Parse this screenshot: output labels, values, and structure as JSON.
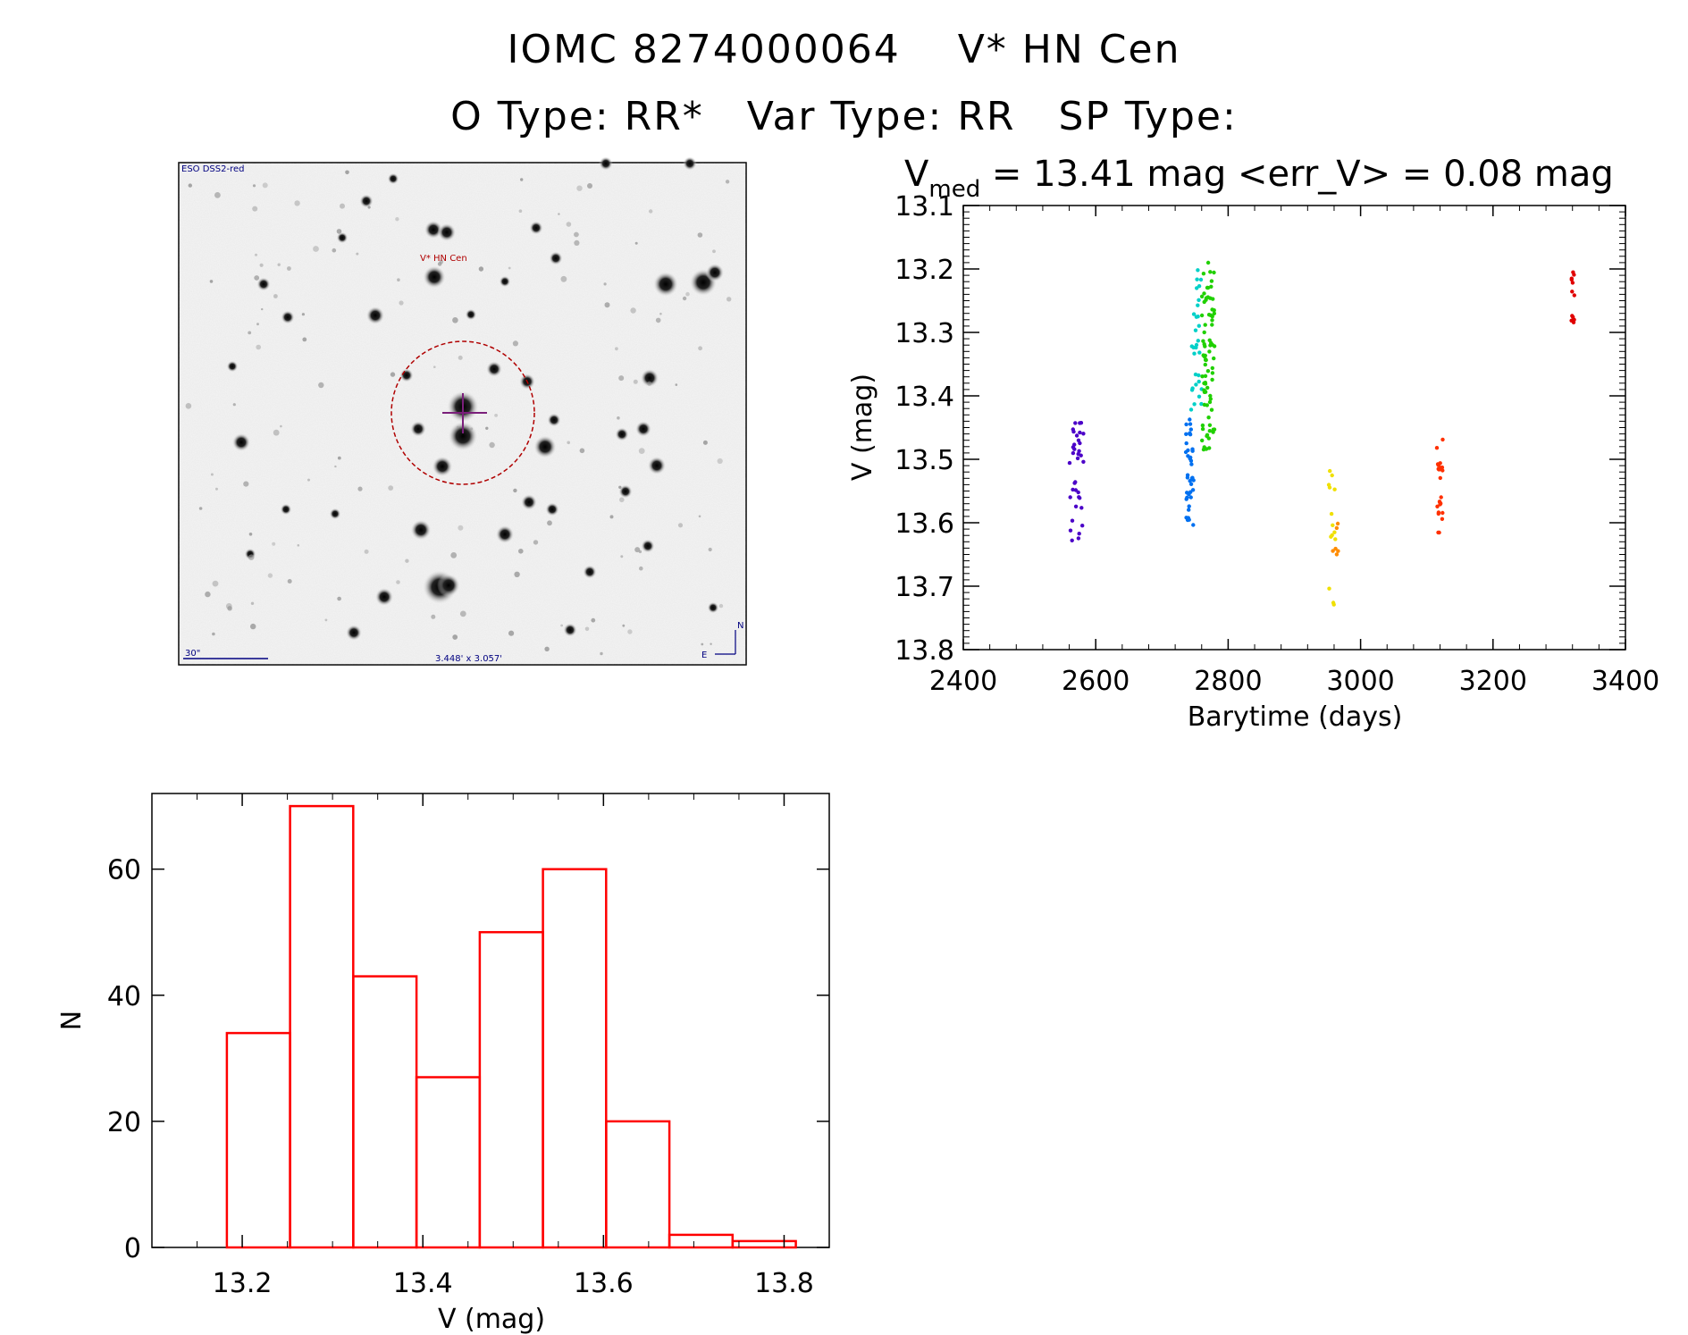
{
  "header": {
    "title_line1": "IOMC 8274000064    V* HN Cen",
    "title_line2": "O Type: RR*   Var Type: RR   SP Type:"
  },
  "finder_image": {
    "label_top_left": "ESO DSS2-red",
    "target_label": "V* HN Cen",
    "scale_label": "30\"",
    "size_label": "3.448' x 3.057'",
    "compass_n": "N",
    "compass_e": "E",
    "colors": {
      "circle": "#b00000",
      "crosshair": "#7a1f7a",
      "annotation": "#000080"
    }
  },
  "stats": {
    "v_symbol": "V",
    "v_subscript": "med",
    "v_text": " = 13.41 mag <err_V> = 0.08 mag"
  },
  "chart_data": [
    {
      "type": "scatter",
      "xlabel": "Barytime (days)",
      "ylabel": "V (mag)",
      "xlim": [
        2400,
        3400
      ],
      "ylim": [
        13.8,
        13.1
      ],
      "y_inverted": true,
      "x_ticks": [
        2400,
        2600,
        2800,
        3000,
        3200,
        3400
      ],
      "y_ticks": [
        13.1,
        13.2,
        13.3,
        13.4,
        13.5,
        13.6,
        13.7,
        13.8
      ],
      "x_tick_labels": [
        "2400",
        "2600",
        "2800",
        "3000",
        "3200",
        "3400"
      ],
      "y_tick_labels": [
        "13.1",
        "13.2",
        "13.3",
        "13.4",
        "13.5",
        "13.6",
        "13.7",
        "13.8"
      ],
      "color_scale": "points colored by time: blue/purple (early) to red (late)",
      "groups": [
        {
          "color": "#4b00c8",
          "x_range": [
            2560,
            2582
          ],
          "y_range": [
            13.44,
            13.64
          ],
          "n": 36
        },
        {
          "color": "#0070f0",
          "x_range": [
            2736,
            2748
          ],
          "y_range": [
            13.42,
            13.61
          ],
          "n": 40
        },
        {
          "color": "#00d0c8",
          "x_range": [
            2744,
            2760
          ],
          "y_range": [
            13.19,
            13.44
          ],
          "n": 30
        },
        {
          "color": "#20d000",
          "x_range": [
            2760,
            2780
          ],
          "y_range": [
            13.19,
            13.49
          ],
          "n": 80
        },
        {
          "color": "#f0e000",
          "x_range": [
            2952,
            2962
          ],
          "y_range": [
            13.5,
            13.74
          ],
          "n": 14
        },
        {
          "color": "#ff8c00",
          "x_range": [
            2958,
            2966
          ],
          "y_range": [
            13.57,
            13.65
          ],
          "n": 6
        },
        {
          "color": "#ff3000",
          "x_range": [
            3115,
            3125
          ],
          "y_range": [
            13.46,
            13.62
          ],
          "n": 24
        },
        {
          "color": "#e00000",
          "x_range": [
            3318,
            3323
          ],
          "y_range": [
            13.2,
            13.29
          ],
          "n": 12
        }
      ]
    },
    {
      "type": "bar",
      "subtype": "histogram",
      "xlabel": "V (mag)",
      "ylabel": "N",
      "xlim": [
        13.1,
        13.85
      ],
      "ylim": [
        0,
        72
      ],
      "x_ticks": [
        13.2,
        13.4,
        13.6,
        13.8
      ],
      "x_tick_labels": [
        "13.2",
        "13.4",
        "13.6",
        "13.8"
      ],
      "y_ticks": [
        0,
        20,
        40,
        60
      ],
      "y_tick_labels": [
        "0",
        "20",
        "40",
        "60"
      ],
      "bin_edges": [
        13.183,
        13.253,
        13.323,
        13.393,
        13.463,
        13.533,
        13.603,
        13.673,
        13.743,
        13.813
      ],
      "values": [
        34,
        70,
        43,
        27,
        50,
        60,
        20,
        2,
        1
      ],
      "color": "#ff0000"
    }
  ]
}
